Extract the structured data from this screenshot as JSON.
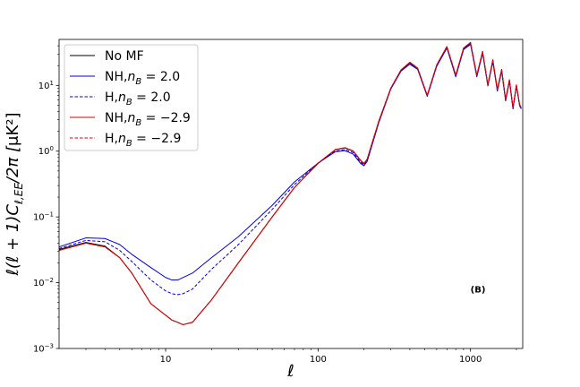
{
  "chart_data": {
    "type": "line",
    "xscale": "log",
    "yscale": "log",
    "xlim": [
      2,
      2200
    ],
    "ylim": [
      0.001,
      50
    ],
    "xlabel": "ℓ",
    "ylabel": "ℓ(ℓ + 1)C_{ℓ,EE}/2π [μK²]",
    "legend_position": "top-left",
    "annotation": "(B)",
    "x_ticks": [
      {
        "value": 10,
        "label": "10"
      },
      {
        "value": 100,
        "label": "100"
      },
      {
        "value": 1000,
        "label": "1000"
      }
    ],
    "y_ticks": [
      {
        "value": 0.001,
        "base": "10",
        "exp": "−3"
      },
      {
        "value": 0.01,
        "base": "10",
        "exp": "−2"
      },
      {
        "value": 0.1,
        "base": "10",
        "exp": "−1"
      },
      {
        "value": 1,
        "base": "10",
        "exp": "0"
      },
      {
        "value": 10,
        "base": "10",
        "exp": "1"
      }
    ],
    "x": [
      2,
      3,
      4,
      5,
      6,
      8,
      10,
      11,
      12,
      13,
      15,
      20,
      30,
      50,
      70,
      100,
      130,
      150,
      170,
      190,
      200,
      210,
      250,
      300,
      350,
      400,
      450,
      520,
      600,
      700,
      800,
      900,
      1000,
      1100,
      1200,
      1300,
      1400,
      1500,
      1600,
      1700,
      1800,
      1900,
      2000,
      2100,
      2150
    ],
    "series": [
      {
        "name": "No MF",
        "color": "#000000",
        "dash": "solid",
        "values": [
          0.032,
          0.041,
          0.036,
          0.024,
          0.014,
          0.0048,
          0.0032,
          0.0027,
          0.0025,
          0.0023,
          0.0025,
          0.0055,
          0.02,
          0.1,
          0.28,
          0.65,
          1.05,
          1.12,
          1.0,
          0.72,
          0.64,
          0.75,
          2.8,
          9.0,
          17.0,
          22.0,
          18.0,
          7.0,
          20.0,
          38.0,
          14.0,
          36.0,
          44.0,
          14.0,
          32.0,
          10.0,
          24.0,
          8.5,
          17.0,
          6.0,
          12.0,
          4.5,
          10.0,
          5.0,
          4.5
        ]
      },
      {
        "name": "NH,n_B = 2.0",
        "label_main": "NH,",
        "label_var": "n",
        "label_sub": "B",
        "label_rest": " = 2.0",
        "color": "#0000dd",
        "dash": "solid",
        "values": [
          0.035,
          0.048,
          0.047,
          0.038,
          0.027,
          0.017,
          0.012,
          0.011,
          0.011,
          0.012,
          0.014,
          0.024,
          0.05,
          0.15,
          0.34,
          0.66,
          0.98,
          1.02,
          0.9,
          0.65,
          0.6,
          0.7,
          2.7,
          8.8,
          16.5,
          21.0,
          17.5,
          6.8,
          19.5,
          37.0,
          13.5,
          35.0,
          42.0,
          13.5,
          31.0,
          9.8,
          23.0,
          8.2,
          16.5,
          5.8,
          11.5,
          4.4,
          9.8,
          4.9,
          4.4
        ]
      },
      {
        "name": "H,n_B = 2.0",
        "label_main": "H,",
        "label_var": "n",
        "label_sub": "B",
        "label_rest": " = 2.0",
        "color": "#0000dd",
        "dash": "dashed",
        "values": [
          0.033,
          0.044,
          0.042,
          0.031,
          0.021,
          0.011,
          0.0075,
          0.0068,
          0.0066,
          0.0068,
          0.008,
          0.016,
          0.038,
          0.13,
          0.31,
          0.66,
          1.0,
          1.06,
          0.95,
          0.68,
          0.62,
          0.72,
          2.75,
          8.9,
          16.8,
          21.5,
          17.8,
          6.9,
          19.8,
          37.5,
          13.8,
          35.5,
          43.0,
          13.8,
          31.5,
          9.9,
          23.5,
          8.3,
          16.8,
          5.9,
          11.8,
          4.45,
          9.9,
          4.95,
          4.45
        ]
      },
      {
        "name": "NH,n_B = −2.9",
        "label_main": "NH,",
        "label_var": "n",
        "label_sub": "B",
        "label_rest": " = −2.9",
        "color": "#dd0000",
        "dash": "solid",
        "values": [
          0.031,
          0.04,
          0.035,
          0.024,
          0.014,
          0.0048,
          0.0032,
          0.0027,
          0.0025,
          0.0023,
          0.0025,
          0.0055,
          0.02,
          0.1,
          0.28,
          0.66,
          1.06,
          1.13,
          1.01,
          0.73,
          0.65,
          0.76,
          2.85,
          9.1,
          17.2,
          22.5,
          18.3,
          7.1,
          20.5,
          39.0,
          14.3,
          37.0,
          45.0,
          14.3,
          33.0,
          10.2,
          24.5,
          8.7,
          17.5,
          6.1,
          12.2,
          4.6,
          10.2,
          5.1,
          4.6
        ]
      },
      {
        "name": "H,n_B = −2.9",
        "label_main": "H,",
        "label_var": "n",
        "label_sub": "B",
        "label_rest": " = −2.9",
        "color": "#dd0000",
        "dash": "dashed",
        "values": [
          0.031,
          0.04,
          0.035,
          0.024,
          0.014,
          0.0048,
          0.0032,
          0.0027,
          0.0025,
          0.0023,
          0.0025,
          0.0055,
          0.02,
          0.1,
          0.28,
          0.66,
          1.06,
          1.13,
          1.01,
          0.73,
          0.65,
          0.76,
          2.85,
          9.1,
          17.2,
          22.5,
          18.3,
          7.1,
          20.5,
          39.0,
          14.3,
          37.0,
          45.0,
          14.3,
          33.0,
          10.2,
          24.5,
          8.7,
          17.5,
          6.1,
          12.2,
          4.6,
          10.2,
          5.1,
          4.6
        ]
      }
    ]
  }
}
